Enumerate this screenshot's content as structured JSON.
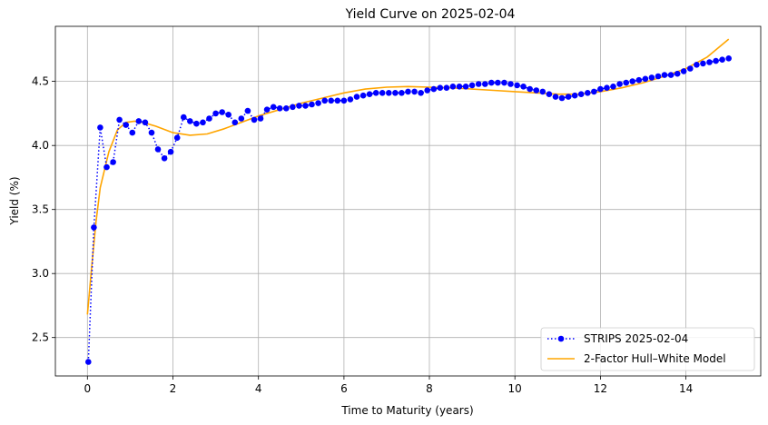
{
  "chart_data": {
    "type": "line",
    "title": "Yield Curve on 2025-02-04",
    "xlabel": "Time to Maturity (years)",
    "ylabel": "Yield (%)",
    "xlim": [
      -0.75,
      15.75
    ],
    "ylim": [
      2.2,
      4.93
    ],
    "xticks": [
      0,
      2,
      4,
      6,
      8,
      10,
      12,
      14
    ],
    "yticks": [
      2.5,
      3.0,
      3.5,
      4.0,
      4.5
    ],
    "xtick_labels": [
      "0",
      "2",
      "4",
      "6",
      "8",
      "10",
      "12",
      "14"
    ],
    "ytick_labels": [
      "2.5",
      "3.0",
      "3.5",
      "4.0",
      "4.5"
    ],
    "grid": true,
    "legend_position": "lower-right",
    "series": [
      {
        "name": "STRIPS 2025-02-04",
        "color": "#0000ff",
        "style": "dotted-with-markers",
        "points": [
          [
            0.02,
            2.31
          ],
          [
            0.15,
            3.36
          ],
          [
            0.3,
            4.14
          ],
          [
            0.45,
            3.83
          ],
          [
            0.6,
            3.87
          ],
          [
            0.75,
            4.2
          ],
          [
            0.9,
            4.16
          ],
          [
            1.05,
            4.1
          ],
          [
            1.2,
            4.19
          ],
          [
            1.35,
            4.18
          ],
          [
            1.5,
            4.1
          ],
          [
            1.65,
            3.97
          ],
          [
            1.8,
            3.9
          ],
          [
            1.95,
            3.95
          ],
          [
            2.1,
            4.06
          ],
          [
            2.25,
            4.22
          ],
          [
            2.4,
            4.19
          ],
          [
            2.55,
            4.17
          ],
          [
            2.7,
            4.18
          ],
          [
            2.85,
            4.21
          ],
          [
            3.0,
            4.25
          ],
          [
            3.15,
            4.26
          ],
          [
            3.3,
            4.24
          ],
          [
            3.45,
            4.18
          ],
          [
            3.6,
            4.21
          ],
          [
            3.75,
            4.27
          ],
          [
            3.9,
            4.2
          ],
          [
            4.05,
            4.21
          ],
          [
            4.2,
            4.28
          ],
          [
            4.35,
            4.3
          ],
          [
            4.5,
            4.29
          ],
          [
            4.65,
            4.29
          ],
          [
            4.8,
            4.3
          ],
          [
            4.95,
            4.31
          ],
          [
            5.1,
            4.31
          ],
          [
            5.25,
            4.32
          ],
          [
            5.4,
            4.33
          ],
          [
            5.55,
            4.35
          ],
          [
            5.7,
            4.35
          ],
          [
            5.85,
            4.35
          ],
          [
            6.0,
            4.35
          ],
          [
            6.15,
            4.36
          ],
          [
            6.3,
            4.38
          ],
          [
            6.45,
            4.39
          ],
          [
            6.6,
            4.4
          ],
          [
            6.75,
            4.41
          ],
          [
            6.9,
            4.41
          ],
          [
            7.05,
            4.41
          ],
          [
            7.2,
            4.41
          ],
          [
            7.35,
            4.41
          ],
          [
            7.5,
            4.42
          ],
          [
            7.65,
            4.42
          ],
          [
            7.8,
            4.41
          ],
          [
            7.95,
            4.43
          ],
          [
            8.1,
            4.44
          ],
          [
            8.25,
            4.45
          ],
          [
            8.4,
            4.45
          ],
          [
            8.55,
            4.46
          ],
          [
            8.7,
            4.46
          ],
          [
            8.85,
            4.46
          ],
          [
            9.0,
            4.47
          ],
          [
            9.15,
            4.48
          ],
          [
            9.3,
            4.48
          ],
          [
            9.45,
            4.49
          ],
          [
            9.6,
            4.49
          ],
          [
            9.75,
            4.49
          ],
          [
            9.9,
            4.48
          ],
          [
            10.05,
            4.47
          ],
          [
            10.2,
            4.46
          ],
          [
            10.35,
            4.44
          ],
          [
            10.5,
            4.43
          ],
          [
            10.65,
            4.42
          ],
          [
            10.8,
            4.4
          ],
          [
            10.95,
            4.38
          ],
          [
            11.1,
            4.37
          ],
          [
            11.25,
            4.38
          ],
          [
            11.4,
            4.39
          ],
          [
            11.55,
            4.4
          ],
          [
            11.7,
            4.41
          ],
          [
            11.85,
            4.42
          ],
          [
            12.0,
            4.44
          ],
          [
            12.15,
            4.45
          ],
          [
            12.3,
            4.46
          ],
          [
            12.45,
            4.48
          ],
          [
            12.6,
            4.49
          ],
          [
            12.75,
            4.5
          ],
          [
            12.9,
            4.51
          ],
          [
            13.05,
            4.52
          ],
          [
            13.2,
            4.53
          ],
          [
            13.35,
            4.54
          ],
          [
            13.5,
            4.55
          ],
          [
            13.65,
            4.55
          ],
          [
            13.8,
            4.56
          ],
          [
            13.95,
            4.58
          ],
          [
            14.1,
            4.6
          ],
          [
            14.25,
            4.63
          ],
          [
            14.4,
            4.64
          ],
          [
            14.55,
            4.65
          ],
          [
            14.7,
            4.66
          ],
          [
            14.85,
            4.67
          ],
          [
            15.0,
            4.68
          ]
        ]
      },
      {
        "name": "2-Factor Hull–White Model",
        "color": "#ffa500",
        "style": "solid",
        "points": [
          [
            0.0,
            2.68
          ],
          [
            0.1,
            3.05
          ],
          [
            0.2,
            3.4
          ],
          [
            0.3,
            3.67
          ],
          [
            0.5,
            3.95
          ],
          [
            0.7,
            4.12
          ],
          [
            0.9,
            4.18
          ],
          [
            1.1,
            4.19
          ],
          [
            1.3,
            4.18
          ],
          [
            1.6,
            4.15
          ],
          [
            2.0,
            4.1
          ],
          [
            2.4,
            4.08
          ],
          [
            2.8,
            4.09
          ],
          [
            3.2,
            4.13
          ],
          [
            3.6,
            4.18
          ],
          [
            4.0,
            4.23
          ],
          [
            4.5,
            4.28
          ],
          [
            5.0,
            4.33
          ],
          [
            5.5,
            4.37
          ],
          [
            6.0,
            4.41
          ],
          [
            6.5,
            4.44
          ],
          [
            7.0,
            4.455
          ],
          [
            7.5,
            4.46
          ],
          [
            8.0,
            4.455
          ],
          [
            8.5,
            4.45
          ],
          [
            9.0,
            4.44
          ],
          [
            9.5,
            4.43
          ],
          [
            10.0,
            4.42
          ],
          [
            10.5,
            4.41
          ],
          [
            11.0,
            4.4
          ],
          [
            11.5,
            4.4
          ],
          [
            12.0,
            4.42
          ],
          [
            12.5,
            4.45
          ],
          [
            13.0,
            4.49
          ],
          [
            13.5,
            4.54
          ],
          [
            14.0,
            4.6
          ],
          [
            14.5,
            4.69
          ],
          [
            15.0,
            4.83
          ]
        ]
      }
    ]
  }
}
